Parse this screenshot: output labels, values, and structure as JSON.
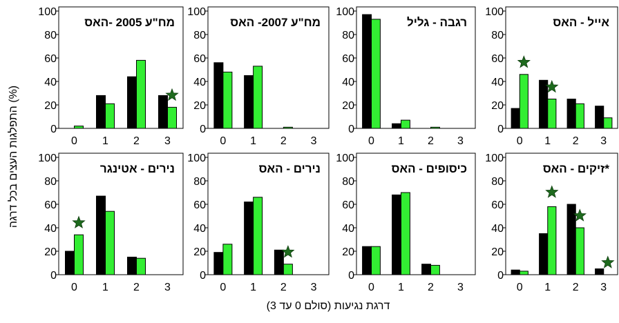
{
  "figure": {
    "ylabel": "התפלגות העצים בכל דרגה (%)",
    "xlabel": "דרגת נגיעות (סולם 0 עד 3)"
  },
  "colors": {
    "series_dark": "#000000",
    "series_light": "#33ee33",
    "star": "#1e6b1e"
  },
  "chart_data": [
    {
      "type": "bar",
      "title": "מח\"ע 2005 -האס",
      "categories": [
        "0",
        "1",
        "2",
        "3"
      ],
      "ylim": [
        0,
        100
      ],
      "yticks": [
        "0",
        "20",
        "40",
        "60",
        "80",
        "100"
      ],
      "series": [
        {
          "values": [
            0,
            28,
            44,
            28
          ]
        },
        {
          "values": [
            2,
            21,
            58,
            18
          ]
        }
      ],
      "stars": [
        {
          "category": "3",
          "value": 23
        }
      ]
    },
    {
      "type": "bar",
      "title": "מח\"ע 2007- האס",
      "categories": [
        "0",
        "1",
        "2",
        "3"
      ],
      "ylim": [
        0,
        100
      ],
      "yticks": [
        "0",
        "20",
        "40",
        "60",
        "80",
        "100"
      ],
      "series": [
        {
          "values": [
            56,
            45,
            0,
            0
          ]
        },
        {
          "values": [
            48,
            53,
            1,
            0
          ]
        }
      ],
      "stars": []
    },
    {
      "type": "bar",
      "title": "רגבה - גליל",
      "categories": [
        "0",
        "1",
        "2",
        "3"
      ],
      "ylim": [
        0,
        100
      ],
      "yticks": [
        "0",
        "20",
        "40",
        "60",
        "80",
        "100"
      ],
      "series": [
        {
          "values": [
            97,
            4,
            0,
            0
          ]
        },
        {
          "values": [
            93,
            7,
            1,
            0
          ]
        }
      ],
      "stars": []
    },
    {
      "type": "bar",
      "title": "אייל - האס",
      "categories": [
        "0",
        "1",
        "2",
        "3"
      ],
      "ylim": [
        0,
        100
      ],
      "yticks": [
        "0",
        "20",
        "40",
        "60",
        "80",
        "100"
      ],
      "series": [
        {
          "values": [
            17,
            41,
            25,
            19
          ]
        },
        {
          "values": [
            46,
            25,
            21,
            9
          ]
        }
      ],
      "stars": [
        {
          "category": "0",
          "value": 51
        },
        {
          "category": "1",
          "value": 30
        }
      ]
    },
    {
      "type": "bar",
      "title": "נירים - אטינגר",
      "categories": [
        "0",
        "1",
        "2",
        "3"
      ],
      "ylim": [
        0,
        100
      ],
      "yticks": [
        "0",
        "20",
        "40",
        "60",
        "80",
        "100"
      ],
      "series": [
        {
          "values": [
            20,
            67,
            15,
            0
          ]
        },
        {
          "values": [
            34,
            54,
            14,
            0
          ]
        }
      ],
      "stars": [
        {
          "category": "0",
          "value": 39
        }
      ]
    },
    {
      "type": "bar",
      "title": "נירים - האס",
      "categories": [
        "0",
        "1",
        "2",
        "3"
      ],
      "ylim": [
        0,
        100
      ],
      "yticks": [
        "0",
        "20",
        "40",
        "60",
        "80",
        "100"
      ],
      "series": [
        {
          "values": [
            19,
            62,
            21,
            0
          ]
        },
        {
          "values": [
            26,
            66,
            9,
            0
          ]
        }
      ],
      "stars": [
        {
          "category": "2",
          "value": 14
        }
      ]
    },
    {
      "type": "bar",
      "title": "כיסופים - האס",
      "categories": [
        "0",
        "1",
        "2",
        "3"
      ],
      "ylim": [
        0,
        100
      ],
      "yticks": [
        "0",
        "20",
        "40",
        "60",
        "80",
        "100"
      ],
      "series": [
        {
          "values": [
            24,
            68,
            9,
            0
          ]
        },
        {
          "values": [
            24,
            70,
            8,
            0
          ]
        }
      ],
      "stars": []
    },
    {
      "type": "bar",
      "title": "זיקים - האס*",
      "categories": [
        "0",
        "1",
        "2",
        "3"
      ],
      "ylim": [
        0,
        100
      ],
      "yticks": [
        "0",
        "20",
        "40",
        "60",
        "80",
        "100"
      ],
      "series": [
        {
          "values": [
            4,
            35,
            60,
            5
          ]
        },
        {
          "values": [
            3,
            58,
            40,
            0
          ]
        }
      ],
      "stars": [
        {
          "category": "1",
          "value": 65
        },
        {
          "category": "2",
          "value": 45
        },
        {
          "category": "3",
          "value": 5
        }
      ]
    }
  ]
}
